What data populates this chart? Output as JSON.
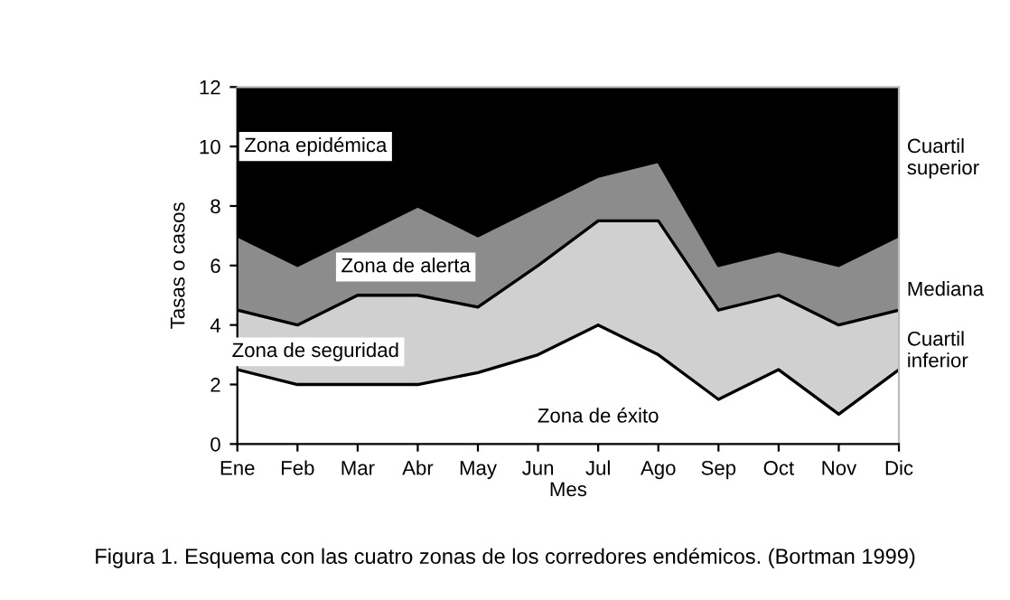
{
  "chart_data": {
    "type": "area",
    "stacked": true,
    "xlabel": "Mes",
    "ylabel": "Tasas o casos",
    "categories": [
      "Ene",
      "Feb",
      "Mar",
      "Abr",
      "May",
      "Jun",
      "Jul",
      "Ago",
      "Sep",
      "Oct",
      "Nov",
      "Dic"
    ],
    "series": [
      {
        "name": "Zona de éxito",
        "color": "#ffffff",
        "values": [
          2.5,
          2,
          2,
          2,
          2.4,
          3,
          4,
          3,
          1.5,
          2.5,
          1,
          2.5
        ]
      },
      {
        "name": "Zona de seguridad",
        "color": "#d0d0d0",
        "values": [
          2,
          2,
          3,
          3,
          2.2,
          3,
          3.5,
          4.5,
          3,
          2.5,
          3,
          2
        ]
      },
      {
        "name": "Zona de alerta",
        "color": "#8c8c8c",
        "values": [
          2.5,
          2,
          2,
          3,
          2.4,
          2,
          1.5,
          2,
          1.5,
          1.5,
          2,
          2.5
        ]
      },
      {
        "name": "Zona epidémica",
        "color": "#000000",
        "values": [
          5,
          6,
          5,
          4,
          5,
          4,
          3,
          2.5,
          6,
          5.5,
          6,
          5
        ]
      }
    ],
    "ylim": [
      0,
      12
    ],
    "yticks": [
      0,
      2,
      4,
      6,
      8,
      10,
      12
    ],
    "grid": false,
    "legend": false,
    "annotations": [
      "Cuartil superior",
      "Mediana",
      "Cuartil inferior",
      "Figura 1. Esquema con las cuatro zonas de los corredores endémicos. (Bortman 1999)"
    ]
  }
}
